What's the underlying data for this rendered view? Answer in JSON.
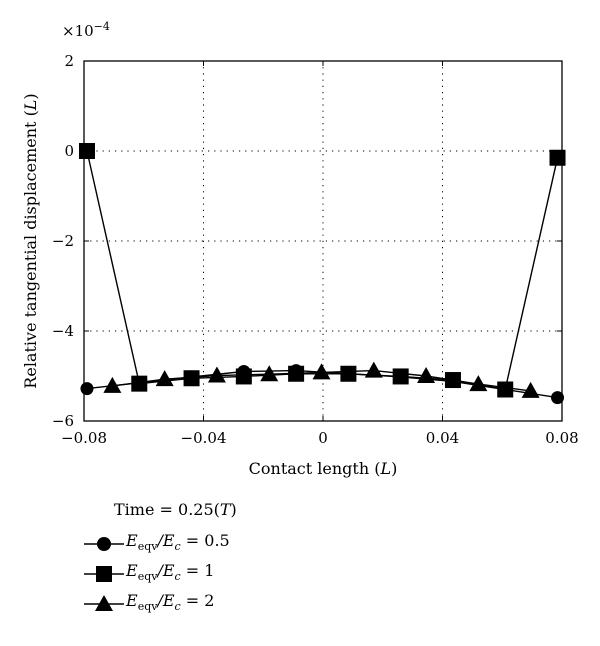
{
  "chart_data": {
    "type": "line",
    "xlabel": "Contact length",
    "xlabel_unit": "L",
    "ylabel": "Relative tangential displacement",
    "ylabel_unit": "L",
    "y_multiplier": "×10",
    "y_multiplier_exp": "−4",
    "xlim": [
      -0.08,
      0.08
    ],
    "ylim": [
      -6,
      2
    ],
    "x_ticks": [
      -0.08,
      -0.04,
      0,
      0.04,
      0.08
    ],
    "x_tick_labels": [
      "−0.08",
      "−0.04",
      "0",
      "0.04",
      "0.08"
    ],
    "y_ticks": [
      -6,
      -4,
      -2,
      0,
      2
    ],
    "y_tick_labels": [
      "−6",
      "−4",
      "−2",
      "0",
      "2"
    ],
    "grid": true,
    "legend_title": "Time = 0.25(",
    "legend_title_unit": "T",
    "series": [
      {
        "label_prefix": "E",
        "label_sub": "eqv",
        "label_mid": "/E",
        "label_sub2": "c",
        "label_value": " = 0.5",
        "marker": "circle",
        "x": [
          -0.079,
          -0.0615,
          -0.044,
          -0.0265,
          -0.009,
          0.0085,
          0.026,
          0.0435,
          0.061,
          0.0785
        ],
        "y": [
          -5.28,
          -5.15,
          -5.02,
          -4.9,
          -4.88,
          -4.95,
          -5.02,
          -5.12,
          -5.3,
          -5.48
        ]
      },
      {
        "label_prefix": "E",
        "label_sub": "eqv",
        "label_mid": "/E",
        "label_sub2": "c",
        "label_value": " = 1",
        "marker": "square",
        "x": [
          -0.079,
          -0.0615,
          -0.044,
          -0.0265,
          -0.009,
          0.0085,
          0.026,
          0.0435,
          0.061,
          0.0785
        ],
        "y": [
          0.0,
          -5.17,
          -5.05,
          -5.01,
          -4.95,
          -4.95,
          -5.01,
          -5.09,
          -5.3,
          -0.15
        ]
      },
      {
        "label_prefix": "E",
        "label_sub": "eqv",
        "label_mid": "/E",
        "label_sub2": "c",
        "label_value": " = 2",
        "marker": "triangle",
        "x": [
          -0.0705,
          -0.053,
          -0.0355,
          -0.018,
          -0.0005,
          0.017,
          0.0345,
          0.052,
          0.0695
        ],
        "y": [
          -5.22,
          -5.07,
          -4.99,
          -4.96,
          -4.92,
          -4.88,
          -5.0,
          -5.18,
          -5.33
        ]
      }
    ]
  }
}
